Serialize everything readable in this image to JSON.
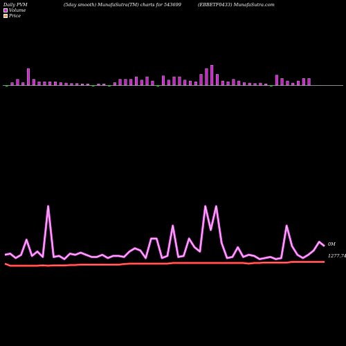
{
  "header": {
    "left": "Daily PVM",
    "center": "(5day smooth) MunafaSutra(TM) charts for 543699",
    "right": "(EBBETF0433) MunafaSutra.com"
  },
  "legend": [
    {
      "label": "Volume",
      "color": "#d21fd2"
    },
    {
      "label": "Price",
      "color": "#f0a060"
    }
  ],
  "colors": {
    "volume_up": "#cc22cc",
    "volume_down": "#33bb33",
    "line_outer": "#ff55ff",
    "line_inner": "#ffffff",
    "price_outer": "#ff2222",
    "price_inner": "#ffffff"
  },
  "chart_data": {
    "type": "line",
    "title": "",
    "volume_bars": [
      {
        "v": 0.06,
        "down": true
      },
      {
        "v": 0.06,
        "down": false
      },
      {
        "v": 0.14,
        "down": false
      },
      {
        "v": 0.06,
        "down": false
      },
      {
        "v": 0.4,
        "down": false
      },
      {
        "v": 0.14,
        "down": false
      },
      {
        "v": 0.08,
        "down": false
      },
      {
        "v": 0.08,
        "down": false
      },
      {
        "v": 0.08,
        "down": false
      },
      {
        "v": 0.08,
        "down": false
      },
      {
        "v": 0.06,
        "down": false
      },
      {
        "v": 0.05,
        "down": false
      },
      {
        "v": 0.04,
        "down": false
      },
      {
        "v": 0.04,
        "down": false
      },
      {
        "v": 0.03,
        "down": false
      },
      {
        "v": 0.03,
        "down": false
      },
      {
        "v": 0.02,
        "down": true
      },
      {
        "v": 0.03,
        "down": false
      },
      {
        "v": 0.03,
        "down": false
      },
      {
        "v": 0.02,
        "down": true
      },
      {
        "v": 0.06,
        "down": false
      },
      {
        "v": 0.14,
        "down": false
      },
      {
        "v": 0.14,
        "down": false
      },
      {
        "v": 0.14,
        "down": false
      },
      {
        "v": 0.2,
        "down": false
      },
      {
        "v": 0.12,
        "down": false
      },
      {
        "v": 0.2,
        "down": false
      },
      {
        "v": 0.1,
        "down": false
      },
      {
        "v": 0.06,
        "down": true
      },
      {
        "v": 0.22,
        "down": false
      },
      {
        "v": 0.12,
        "down": false
      },
      {
        "v": 0.2,
        "down": false
      },
      {
        "v": 0.2,
        "down": false
      },
      {
        "v": 0.12,
        "down": false
      },
      {
        "v": 0.1,
        "down": false
      },
      {
        "v": 0.08,
        "down": false
      },
      {
        "v": 0.26,
        "down": false
      },
      {
        "v": 0.4,
        "down": false
      },
      {
        "v": 0.48,
        "down": false
      },
      {
        "v": 0.26,
        "down": false
      },
      {
        "v": 0.1,
        "down": false
      },
      {
        "v": 0.08,
        "down": false
      },
      {
        "v": 0.14,
        "down": false
      },
      {
        "v": 0.1,
        "down": false
      },
      {
        "v": 0.06,
        "down": false
      },
      {
        "v": 0.05,
        "down": false
      },
      {
        "v": 0.04,
        "down": false
      },
      {
        "v": 0.05,
        "down": false
      },
      {
        "v": 0.03,
        "down": false
      },
      {
        "v": 0.03,
        "down": true
      },
      {
        "v": 0.24,
        "down": false
      },
      {
        "v": 0.16,
        "down": false
      },
      {
        "v": 0.1,
        "down": false
      },
      {
        "v": 0.05,
        "down": false
      },
      {
        "v": 0.1,
        "down": false
      },
      {
        "v": 0.16,
        "down": false
      },
      {
        "v": 0.16,
        "down": false
      }
    ],
    "volume_line": [
      0.1,
      0.12,
      0.04,
      0.1,
      0.38,
      0.08,
      0.16,
      0.06,
      1.0,
      0.06,
      0.08,
      0.02,
      0.12,
      0.1,
      0.14,
      0.1,
      0.06,
      0.06,
      0.1,
      0.04,
      0.08,
      0.08,
      0.06,
      0.16,
      0.22,
      0.18,
      0.04,
      0.4,
      0.4,
      0.04,
      0.08,
      0.64,
      0.06,
      0.08,
      0.4,
      0.24,
      0.16,
      1.0,
      0.56,
      1.0,
      0.32,
      0.04,
      0.06,
      0.24,
      0.06,
      0.1,
      0.08,
      0.02,
      0.04,
      0.06,
      0.02,
      0.04,
      0.64,
      0.26,
      0.1,
      0.04,
      0.1,
      0.18,
      0.34,
      0.26
    ],
    "price_line": [
      0.12,
      0.0,
      0.0,
      0.0,
      0.0,
      0.0,
      0.0,
      0.02,
      0.0,
      0.02,
      0.02,
      0.02,
      0.04,
      0.04,
      0.06,
      0.06,
      0.06,
      0.06,
      0.06,
      0.06,
      0.06,
      0.06,
      0.1,
      0.12,
      0.12,
      0.12,
      0.12,
      0.12,
      0.12,
      0.12,
      0.12,
      0.16,
      0.16,
      0.16,
      0.16,
      0.16,
      0.16,
      0.16,
      0.16,
      0.16,
      0.16,
      0.16,
      0.16,
      0.16,
      0.16,
      0.12,
      0.16,
      0.16,
      0.18,
      0.18,
      0.18,
      0.18,
      0.18,
      0.22,
      0.22,
      0.22,
      0.22,
      0.22,
      0.22,
      0.22
    ],
    "volume_label": "0M",
    "price_label": "1277.74",
    "grid": false
  }
}
